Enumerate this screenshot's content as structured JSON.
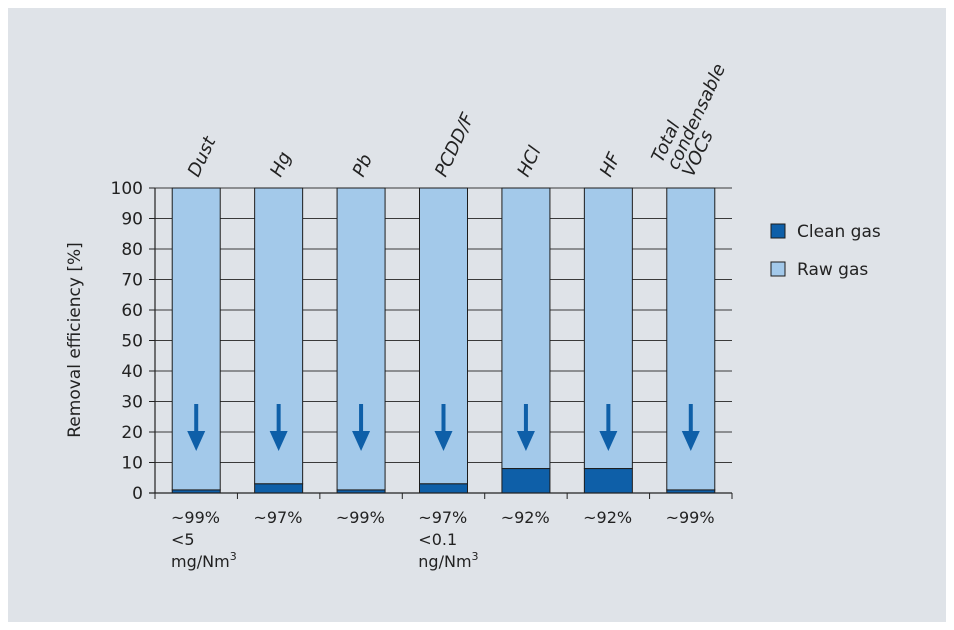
{
  "colors": {
    "raw_gas": "#a3c9ea",
    "clean_gas": "#0e5fa8",
    "arrow": "#0e5fa8",
    "panel": "#dfe3e8",
    "axis": "#222222"
  },
  "chart_data": {
    "type": "bar",
    "stacked": true,
    "title": "",
    "xlabel": "",
    "ylabel": "Removal efficiency [%]",
    "ylim": [
      0,
      100
    ],
    "yticks": [
      0,
      10,
      20,
      30,
      40,
      50,
      60,
      70,
      80,
      90,
      100
    ],
    "grid": "horizontal",
    "legend_position": "right",
    "categories": [
      {
        "lines": [
          "Dust"
        ]
      },
      {
        "lines": [
          "Hg"
        ]
      },
      {
        "lines": [
          "Pb"
        ]
      },
      {
        "lines": [
          "PCDD/F"
        ]
      },
      {
        "lines": [
          "HCl"
        ]
      },
      {
        "lines": [
          "HF"
        ]
      },
      {
        "lines": [
          "Total",
          "condensable",
          "VOCs"
        ]
      }
    ],
    "series": [
      {
        "name": "Clean gas",
        "values": [
          1,
          3,
          1,
          3,
          8,
          8,
          1
        ]
      },
      {
        "name": "Raw gas",
        "values": [
          99,
          97,
          99,
          97,
          92,
          92,
          99
        ]
      }
    ],
    "efficiency_notes": [
      {
        "lines": [
          {
            "text": "~99%"
          },
          {
            "text": "<5"
          },
          {
            "text": "mg/Nm",
            "sup": "3"
          }
        ]
      },
      {
        "lines": [
          {
            "text": "~97%"
          }
        ]
      },
      {
        "lines": [
          {
            "text": "~99%"
          }
        ]
      },
      {
        "lines": [
          {
            "text": "~97%"
          },
          {
            "text": "<0.1"
          },
          {
            "text": "ng/Nm",
            "sup": "3"
          }
        ]
      },
      {
        "lines": [
          {
            "text": "~92%"
          }
        ]
      },
      {
        "lines": [
          {
            "text": "~92%"
          }
        ]
      },
      {
        "lines": [
          {
            "text": "~99%"
          }
        ]
      }
    ]
  }
}
